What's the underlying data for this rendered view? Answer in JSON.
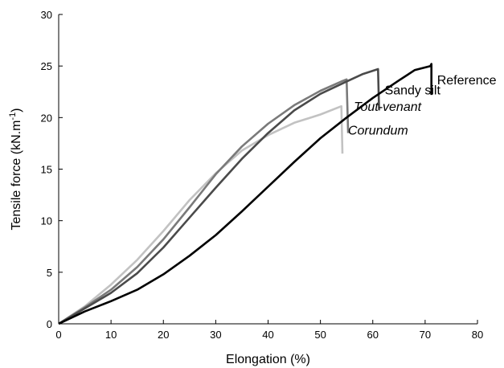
{
  "chart_data": {
    "type": "line",
    "title": "",
    "xlabel": "Elongation (%)",
    "ylabel": "Tensile force (kN.m",
    "ylabel_superscript": "-1",
    "ylabel_close": ")",
    "xlim": [
      0,
      80
    ],
    "ylim": [
      0,
      30
    ],
    "x_ticks": [
      0,
      10,
      20,
      30,
      40,
      50,
      60,
      70,
      80
    ],
    "y_ticks": [
      0,
      5,
      10,
      15,
      20,
      25,
      30
    ],
    "x_tick_labels": [
      "0",
      "10",
      "20",
      "30",
      "40",
      "50",
      "60",
      "70",
      "80"
    ],
    "y_tick_labels": [
      "0",
      "5",
      "10",
      "15",
      "20",
      "25",
      "30"
    ],
    "grid": false,
    "legend": "labels at curve ends",
    "series": [
      {
        "name": "Reference",
        "italic": false,
        "color": "#000000",
        "points": [
          [
            0,
            0
          ],
          [
            5,
            1.2
          ],
          [
            10,
            2.2
          ],
          [
            15,
            3.3
          ],
          [
            20,
            4.8
          ],
          [
            25,
            6.6
          ],
          [
            30,
            8.6
          ],
          [
            35,
            10.9
          ],
          [
            40,
            13.3
          ],
          [
            45,
            15.7
          ],
          [
            50,
            18.0
          ],
          [
            55,
            20.0
          ],
          [
            60,
            21.9
          ],
          [
            65,
            23.6
          ],
          [
            68,
            24.6
          ],
          [
            71,
            25.0
          ],
          [
            71.2,
            25.2
          ],
          [
            71.2,
            22.2
          ]
        ]
      },
      {
        "name": "Sandy silt",
        "italic": false,
        "color": "#4a4a4a",
        "points": [
          [
            0,
            0
          ],
          [
            5,
            1.5
          ],
          [
            10,
            3.0
          ],
          [
            15,
            4.9
          ],
          [
            20,
            7.4
          ],
          [
            25,
            10.3
          ],
          [
            30,
            13.2
          ],
          [
            35,
            16.0
          ],
          [
            40,
            18.5
          ],
          [
            45,
            20.7
          ],
          [
            50,
            22.3
          ],
          [
            55,
            23.5
          ],
          [
            58,
            24.2
          ],
          [
            61,
            24.7
          ],
          [
            61.2,
            20.7
          ]
        ]
      },
      {
        "name": "Tout-venant",
        "italic": true,
        "color": "#7a7a7a",
        "points": [
          [
            0,
            0
          ],
          [
            5,
            1.6
          ],
          [
            10,
            3.3
          ],
          [
            15,
            5.5
          ],
          [
            20,
            8.2
          ],
          [
            25,
            11.3
          ],
          [
            30,
            14.5
          ],
          [
            35,
            17.2
          ],
          [
            40,
            19.4
          ],
          [
            45,
            21.2
          ],
          [
            50,
            22.6
          ],
          [
            54,
            23.5
          ],
          [
            55,
            23.7
          ],
          [
            55.3,
            18.5
          ]
        ]
      },
      {
        "name": "Corundum",
        "italic": true,
        "color": "#c2c2c2",
        "points": [
          [
            0,
            0
          ],
          [
            5,
            1.7
          ],
          [
            10,
            3.8
          ],
          [
            15,
            6.2
          ],
          [
            20,
            9.0
          ],
          [
            25,
            12.0
          ],
          [
            30,
            14.6
          ],
          [
            35,
            16.8
          ],
          [
            40,
            18.3
          ],
          [
            45,
            19.5
          ],
          [
            50,
            20.3
          ],
          [
            54,
            21.1
          ],
          [
            54.2,
            16.5
          ]
        ]
      }
    ]
  }
}
